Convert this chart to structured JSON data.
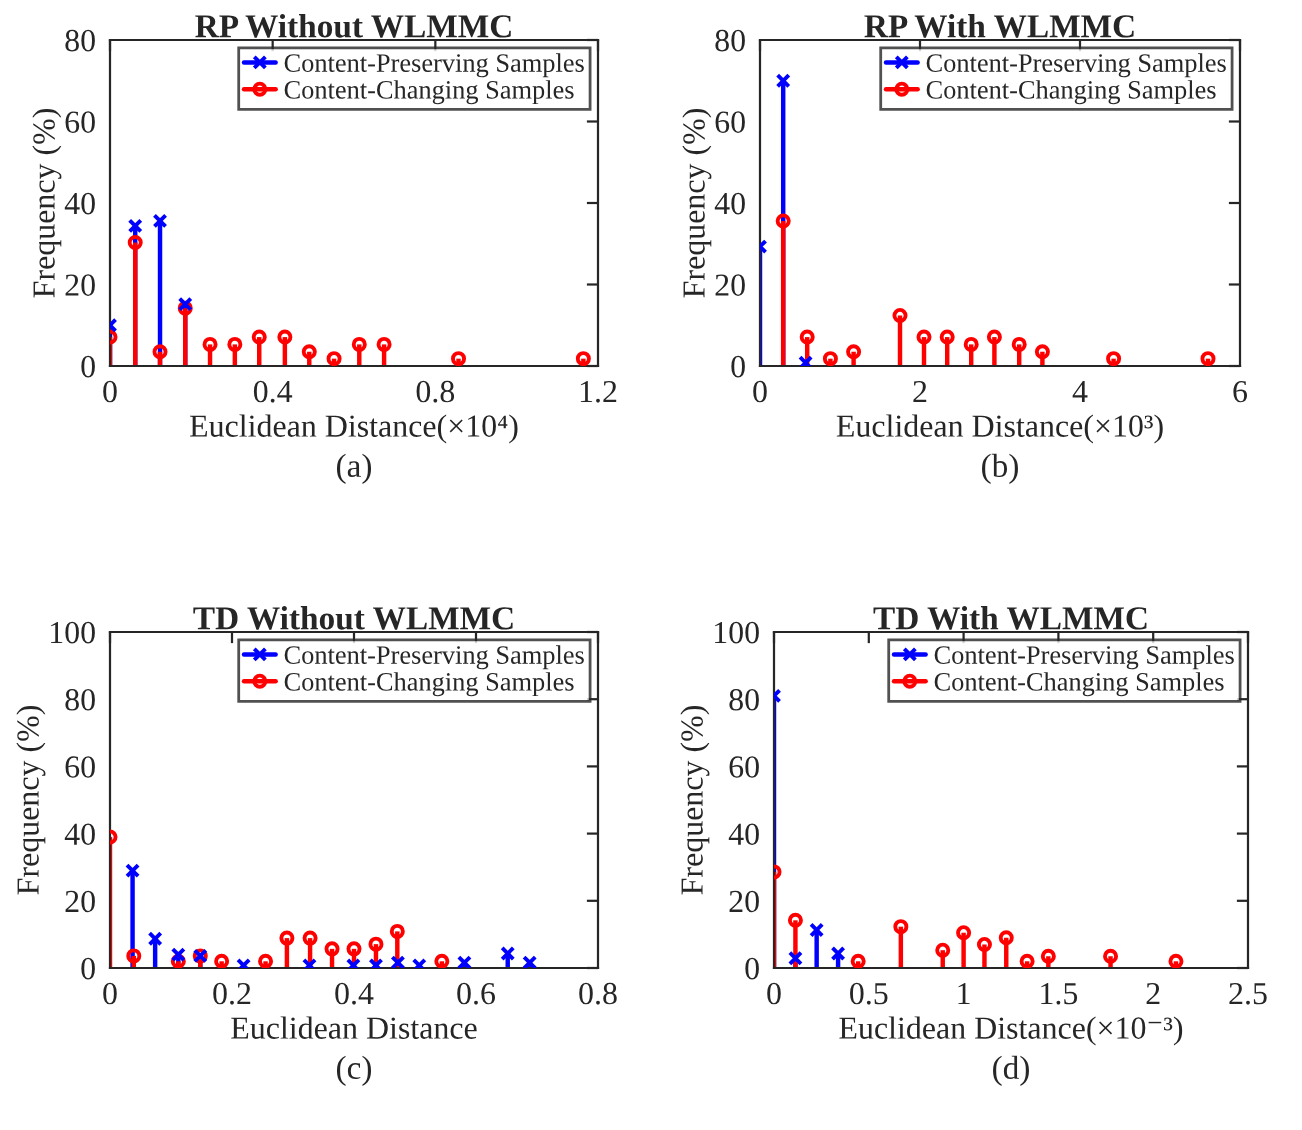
{
  "chart_data": [
    {
      "type": "lollipop",
      "title": "RP Without WLMMC",
      "xlabel": "Euclidean Distance(×10⁴)",
      "ylabel": "Frequency (%)",
      "annotations": [
        "(a)"
      ],
      "xlim": [
        0,
        1.2
      ],
      "xticks": [
        0,
        0.4,
        0.8,
        1.2
      ],
      "ylim": [
        0,
        80
      ],
      "yticks": [
        0,
        20,
        40,
        60,
        80
      ],
      "legend": "top right",
      "grid": false,
      "series": [
        {
          "name": "Content-Preserving Samples",
          "color": "#0000ff",
          "marker": "cross",
          "x": [
            0,
            0.062,
            0.123,
            0.185
          ],
          "values": [
            10,
            34.4,
            35.6,
            15.2
          ]
        },
        {
          "name": "Content-Changing Samples",
          "color": "#ff0000",
          "marker": "circle",
          "x": [
            0,
            0.062,
            0.123,
            0.185,
            0.246,
            0.307,
            0.367,
            0.43,
            0.49,
            0.551,
            0.613,
            0.674,
            0.857,
            1.164
          ],
          "values": [
            7.1,
            30.3,
            3.5,
            14.2,
            5.3,
            5.3,
            7.1,
            7.1,
            3.5,
            1.8,
            5.3,
            5.3,
            1.8,
            1.8
          ]
        }
      ]
    },
    {
      "type": "lollipop",
      "title": "RP With WLMMC",
      "xlabel": "Euclidean Distance(×10³)",
      "ylabel": "Frequency (%)",
      "annotations": [
        "(b)"
      ],
      "xlim": [
        0,
        6
      ],
      "xticks": [
        0,
        2,
        4,
        6
      ],
      "ylim": [
        0,
        80
      ],
      "yticks": [
        0,
        20,
        40,
        60,
        80
      ],
      "legend": "top right",
      "grid": false,
      "series": [
        {
          "name": "Content-Preserving Samples",
          "color": "#0000ff",
          "marker": "cross",
          "x": [
            0,
            0.29,
            0.57
          ],
          "values": [
            29.3,
            70,
            0.8
          ]
        },
        {
          "name": "Content-Changing Samples",
          "color": "#ff0000",
          "marker": "circle",
          "x": [
            0.29,
            0.59,
            0.88,
            1.17,
            1.75,
            2.05,
            2.34,
            2.64,
            2.93,
            3.24,
            3.53,
            4.42,
            5.6
          ],
          "values": [
            35.6,
            7.1,
            1.8,
            3.5,
            12.4,
            7.1,
            7.1,
            5.3,
            7.1,
            5.3,
            3.5,
            1.8,
            1.8
          ]
        }
      ]
    },
    {
      "type": "lollipop",
      "title": "TD Without WLMMC",
      "xlabel": "Euclidean Distance",
      "ylabel": "Frequency (%)",
      "annotations": [
        "(c)"
      ],
      "xlim": [
        0,
        0.8
      ],
      "xticks": [
        0,
        0.2,
        0.4,
        0.6,
        0.8
      ],
      "ylim": [
        0,
        100
      ],
      "yticks": [
        0,
        20,
        40,
        60,
        80,
        100
      ],
      "legend": "top right",
      "grid": false,
      "series": [
        {
          "name": "Content-Preserving Samples",
          "color": "#0000ff",
          "marker": "cross",
          "x": [
            0.037,
            0.074,
            0.112,
            0.148,
            0.219,
            0.327,
            0.399,
            0.436,
            0.472,
            0.507,
            0.581,
            0.652,
            0.688
          ],
          "values": [
            29,
            8.7,
            4,
            3.6,
            0.8,
            0.8,
            0.8,
            0.8,
            1.6,
            0.8,
            1.6,
            4.3,
            1.6
          ]
        },
        {
          "name": "Content-Changing Samples",
          "color": "#ff0000",
          "marker": "circle",
          "x": [
            0,
            0.039,
            0.112,
            0.148,
            0.183,
            0.255,
            0.29,
            0.328,
            0.364,
            0.4,
            0.436,
            0.471,
            0.544
          ],
          "values": [
            39,
            3.6,
            2,
            3.6,
            2,
            2,
            8.9,
            8.9,
            5.7,
            5.7,
            7.1,
            10.9,
            2
          ]
        }
      ]
    },
    {
      "type": "lollipop",
      "title": "TD With WLMMC",
      "xlabel": "Euclidean Distance(×10⁻³)",
      "ylabel": "Frequency (%)",
      "annotations": [
        "(d)"
      ],
      "xlim": [
        0,
        2.5
      ],
      "xticks": [
        0,
        0.5,
        1,
        1.5,
        2,
        2.5
      ],
      "ylim": [
        0,
        100
      ],
      "yticks": [
        0,
        20,
        40,
        60,
        80,
        100
      ],
      "legend": "top right",
      "grid": false,
      "series": [
        {
          "name": "Content-Preserving Samples",
          "color": "#0000ff",
          "marker": "cross",
          "x": [
            0,
            0.113,
            0.225,
            0.338
          ],
          "values": [
            81,
            2.9,
            11.3,
            4.3
          ]
        },
        {
          "name": "Content-Changing Samples",
          "color": "#ff0000",
          "marker": "circle",
          "x": [
            0,
            0.113,
            0.444,
            0.669,
            0.89,
            1.0,
            1.11,
            1.225,
            1.335,
            1.447,
            1.775,
            2.12
          ],
          "values": [
            28.6,
            14.2,
            2,
            12.3,
            5.3,
            10.5,
            7,
            9,
            2,
            3.5,
            3.5,
            2
          ]
        }
      ]
    }
  ]
}
